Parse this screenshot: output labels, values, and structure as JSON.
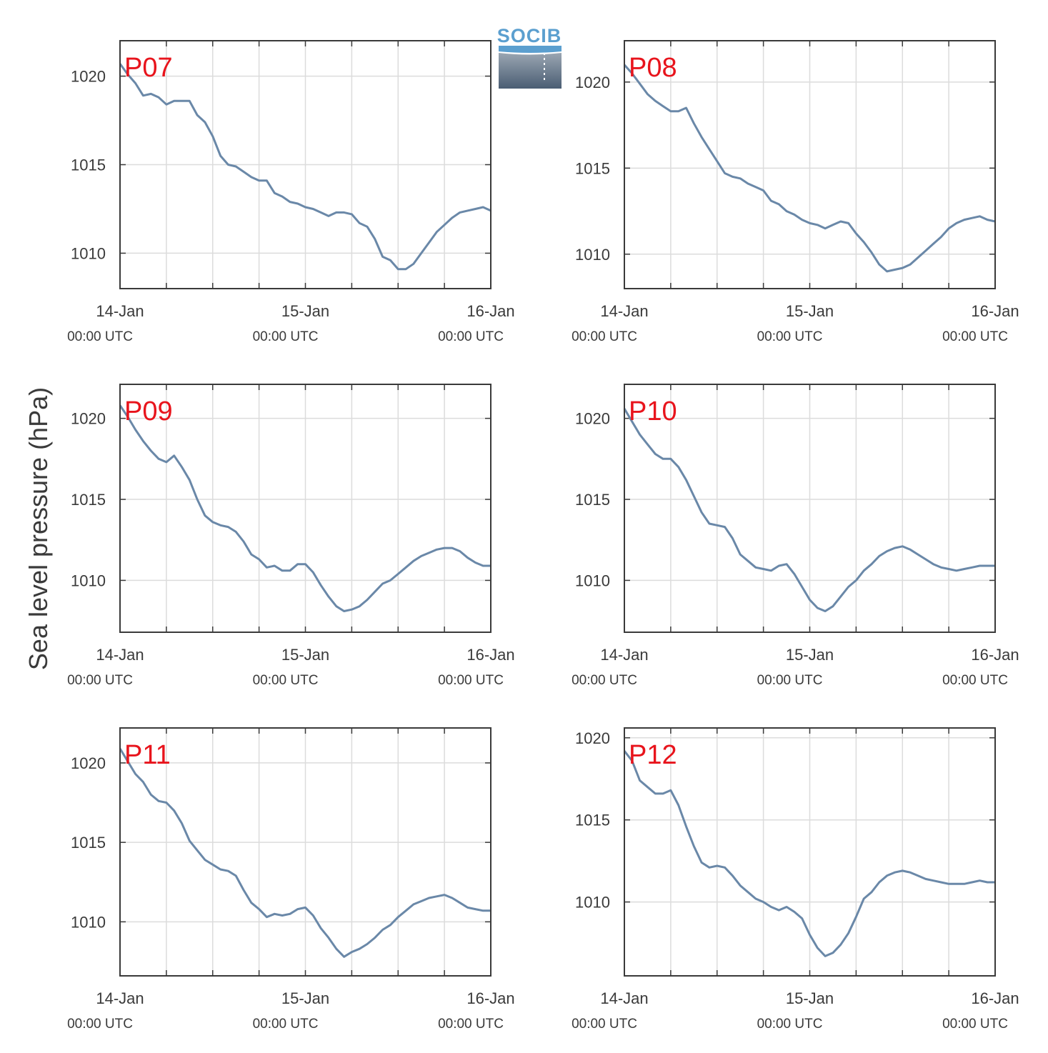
{
  "figure": {
    "ylabel": "Sea level pressure (hPa)",
    "logo_text": "SOCIB",
    "colors": {
      "line": "#6a88a8",
      "grid": "#dcdcdc",
      "axis": "#3a3a3a",
      "label": "#e8141c",
      "logo": "#5b9fcf"
    }
  },
  "chart_data": [
    {
      "type": "line",
      "title": "P07",
      "xlabel": "",
      "ylabel": "",
      "x_ticks": [
        {
          "main": "14-Jan",
          "sub": "00:00 UTC"
        },
        {
          "main": "15-Jan",
          "sub": "00:00 UTC"
        },
        {
          "main": "16-Jan",
          "sub": "00:00 UTC"
        }
      ],
      "xlim_hours": [
        0,
        48
      ],
      "ylim": [
        1008,
        1022
      ],
      "yticks": [
        1010,
        1015,
        1020
      ],
      "grid": true,
      "series": [
        {
          "name": "",
          "x_hours": [
            0,
            1,
            2,
            3,
            4,
            5,
            6,
            7,
            8,
            9,
            10,
            11,
            12,
            13,
            14,
            15,
            16,
            17,
            18,
            19,
            20,
            21,
            22,
            23,
            24,
            25,
            26,
            27,
            28,
            29,
            30,
            31,
            32,
            33,
            34,
            35,
            36,
            37,
            38,
            39,
            40,
            41,
            42,
            43,
            44,
            45,
            46,
            47,
            48
          ],
          "values": [
            1020.7,
            1020.1,
            1019.6,
            1018.9,
            1019.0,
            1018.8,
            1018.4,
            1018.6,
            1018.6,
            1018.6,
            1017.8,
            1017.4,
            1016.6,
            1015.5,
            1015.0,
            1014.9,
            1014.6,
            1014.3,
            1014.1,
            1014.1,
            1013.4,
            1013.2,
            1012.9,
            1012.8,
            1012.6,
            1012.5,
            1012.3,
            1012.1,
            1012.3,
            1012.3,
            1012.2,
            1011.7,
            1011.5,
            1010.8,
            1009.8,
            1009.6,
            1009.1,
            1009.1,
            1009.4,
            1010.0,
            1010.6,
            1011.2,
            1011.6,
            1012.0,
            1012.3,
            1012.4,
            1012.5,
            1012.6,
            1012.4
          ]
        }
      ]
    },
    {
      "type": "line",
      "title": "P08",
      "xlabel": "",
      "ylabel": "",
      "x_ticks": [
        {
          "main": "14-Jan",
          "sub": "00:00 UTC"
        },
        {
          "main": "15-Jan",
          "sub": "00:00 UTC"
        },
        {
          "main": "16-Jan",
          "sub": "00:00 UTC"
        }
      ],
      "xlim_hours": [
        0,
        48
      ],
      "ylim": [
        1008,
        1022.4
      ],
      "yticks": [
        1010,
        1015,
        1020
      ],
      "grid": true,
      "series": [
        {
          "name": "",
          "x_hours": [
            0,
            1,
            2,
            3,
            4,
            5,
            6,
            7,
            8,
            9,
            10,
            11,
            12,
            13,
            14,
            15,
            16,
            17,
            18,
            19,
            20,
            21,
            22,
            23,
            24,
            25,
            26,
            27,
            28,
            29,
            30,
            31,
            32,
            33,
            34,
            35,
            36,
            37,
            38,
            39,
            40,
            41,
            42,
            43,
            44,
            45,
            46,
            47,
            48
          ],
          "values": [
            1021.0,
            1020.5,
            1019.9,
            1019.3,
            1018.9,
            1018.6,
            1018.3,
            1018.3,
            1018.5,
            1017.6,
            1016.8,
            1016.1,
            1015.4,
            1014.7,
            1014.5,
            1014.4,
            1014.1,
            1013.9,
            1013.7,
            1013.1,
            1012.9,
            1012.5,
            1012.3,
            1012.0,
            1011.8,
            1011.7,
            1011.5,
            1011.7,
            1011.9,
            1011.8,
            1011.2,
            1010.7,
            1010.1,
            1009.4,
            1009.0,
            1009.1,
            1009.2,
            1009.4,
            1009.8,
            1010.2,
            1010.6,
            1011.0,
            1011.5,
            1011.8,
            1012.0,
            1012.1,
            1012.2,
            1012.0,
            1011.9
          ]
        }
      ]
    },
    {
      "type": "line",
      "title": "P09",
      "xlabel": "",
      "ylabel": "",
      "x_ticks": [
        {
          "main": "14-Jan",
          "sub": "00:00 UTC"
        },
        {
          "main": "15-Jan",
          "sub": "00:00 UTC"
        },
        {
          "main": "16-Jan",
          "sub": "00:00 UTC"
        }
      ],
      "xlim_hours": [
        0,
        48
      ],
      "ylim": [
        1006.8,
        1022.1
      ],
      "yticks": [
        1010,
        1015,
        1020
      ],
      "grid": true,
      "series": [
        {
          "name": "",
          "x_hours": [
            0,
            1,
            2,
            3,
            4,
            5,
            6,
            7,
            8,
            9,
            10,
            11,
            12,
            13,
            14,
            15,
            16,
            17,
            18,
            19,
            20,
            21,
            22,
            23,
            24,
            25,
            26,
            27,
            28,
            29,
            30,
            31,
            32,
            33,
            34,
            35,
            36,
            37,
            38,
            39,
            40,
            41,
            42,
            43,
            44,
            45,
            46,
            47,
            48
          ],
          "values": [
            1020.8,
            1020.1,
            1019.3,
            1018.6,
            1018.0,
            1017.5,
            1017.3,
            1017.7,
            1017.0,
            1016.2,
            1015.0,
            1014.0,
            1013.6,
            1013.4,
            1013.3,
            1013.0,
            1012.4,
            1011.6,
            1011.3,
            1010.8,
            1010.9,
            1010.6,
            1010.6,
            1011.0,
            1011.0,
            1010.5,
            1009.7,
            1009.0,
            1008.4,
            1008.1,
            1008.2,
            1008.4,
            1008.8,
            1009.3,
            1009.8,
            1010.0,
            1010.4,
            1010.8,
            1011.2,
            1011.5,
            1011.7,
            1011.9,
            1012.0,
            1012.0,
            1011.8,
            1011.4,
            1011.1,
            1010.9,
            1010.9
          ]
        }
      ]
    },
    {
      "type": "line",
      "title": "P10",
      "xlabel": "",
      "ylabel": "",
      "x_ticks": [
        {
          "main": "14-Jan",
          "sub": "00:00 UTC"
        },
        {
          "main": "15-Jan",
          "sub": "00:00 UTC"
        },
        {
          "main": "16-Jan",
          "sub": "00:00 UTC"
        }
      ],
      "xlim_hours": [
        0,
        48
      ],
      "ylim": [
        1006.8,
        1022.1
      ],
      "yticks": [
        1010,
        1015,
        1020
      ],
      "grid": true,
      "series": [
        {
          "name": "",
          "x_hours": [
            0,
            1,
            2,
            3,
            4,
            5,
            6,
            7,
            8,
            9,
            10,
            11,
            12,
            13,
            14,
            15,
            16,
            17,
            18,
            19,
            20,
            21,
            22,
            23,
            24,
            25,
            26,
            27,
            28,
            29,
            30,
            31,
            32,
            33,
            34,
            35,
            36,
            37,
            38,
            39,
            40,
            41,
            42,
            43,
            44,
            45,
            46,
            47,
            48
          ],
          "values": [
            1020.6,
            1019.8,
            1019.0,
            1018.4,
            1017.8,
            1017.5,
            1017.5,
            1017.0,
            1016.2,
            1015.2,
            1014.2,
            1013.5,
            1013.4,
            1013.3,
            1012.6,
            1011.6,
            1011.2,
            1010.8,
            1010.7,
            1010.6,
            1010.9,
            1011.0,
            1010.4,
            1009.6,
            1008.8,
            1008.3,
            1008.1,
            1008.4,
            1009.0,
            1009.6,
            1010.0,
            1010.6,
            1011.0,
            1011.5,
            1011.8,
            1012.0,
            1012.1,
            1011.9,
            1011.6,
            1011.3,
            1011.0,
            1010.8,
            1010.7,
            1010.6,
            1010.7,
            1010.8,
            1010.9,
            1010.9,
            1010.9
          ]
        }
      ]
    },
    {
      "type": "line",
      "title": "P11",
      "xlabel": "",
      "ylabel": "",
      "x_ticks": [
        {
          "main": "14-Jan",
          "sub": "00:00 UTC"
        },
        {
          "main": "15-Jan",
          "sub": "00:00 UTC"
        },
        {
          "main": "16-Jan",
          "sub": "00:00 UTC"
        }
      ],
      "xlim_hours": [
        0,
        48
      ],
      "ylim": [
        1006.6,
        1022.2
      ],
      "yticks": [
        1010,
        1015,
        1020
      ],
      "grid": true,
      "series": [
        {
          "name": "",
          "x_hours": [
            0,
            1,
            2,
            3,
            4,
            5,
            6,
            7,
            8,
            9,
            10,
            11,
            12,
            13,
            14,
            15,
            16,
            17,
            18,
            19,
            20,
            21,
            22,
            23,
            24,
            25,
            26,
            27,
            28,
            29,
            30,
            31,
            32,
            33,
            34,
            35,
            36,
            37,
            38,
            39,
            40,
            41,
            42,
            43,
            44,
            45,
            46,
            47,
            48
          ],
          "values": [
            1020.9,
            1020.1,
            1019.3,
            1018.8,
            1018.0,
            1017.6,
            1017.5,
            1017.0,
            1016.2,
            1015.1,
            1014.5,
            1013.9,
            1013.6,
            1013.3,
            1013.2,
            1012.9,
            1012.0,
            1011.2,
            1010.8,
            1010.3,
            1010.5,
            1010.4,
            1010.5,
            1010.8,
            1010.9,
            1010.4,
            1009.6,
            1009.0,
            1008.3,
            1007.8,
            1008.1,
            1008.3,
            1008.6,
            1009.0,
            1009.5,
            1009.8,
            1010.3,
            1010.7,
            1011.1,
            1011.3,
            1011.5,
            1011.6,
            1011.7,
            1011.5,
            1011.2,
            1010.9,
            1010.8,
            1010.7,
            1010.7
          ]
        }
      ]
    },
    {
      "type": "line",
      "title": "P12",
      "xlabel": "",
      "ylabel": "",
      "x_ticks": [
        {
          "main": "14-Jan",
          "sub": "00:00 UTC"
        },
        {
          "main": "15-Jan",
          "sub": "00:00 UTC"
        },
        {
          "main": "16-Jan",
          "sub": "00:00 UTC"
        }
      ],
      "xlim_hours": [
        0,
        48
      ],
      "ylim": [
        1005.5,
        1020.6
      ],
      "yticks": [
        1010,
        1015,
        1020
      ],
      "grid": true,
      "series": [
        {
          "name": "",
          "x_hours": [
            0,
            1,
            2,
            3,
            4,
            5,
            6,
            7,
            8,
            9,
            10,
            11,
            12,
            13,
            14,
            15,
            16,
            17,
            18,
            19,
            20,
            21,
            22,
            23,
            24,
            25,
            26,
            27,
            28,
            29,
            30,
            31,
            32,
            33,
            34,
            35,
            36,
            37,
            38,
            39,
            40,
            41,
            42,
            43,
            44,
            45,
            46,
            47,
            48
          ],
          "values": [
            1019.2,
            1018.6,
            1017.4,
            1017.0,
            1016.6,
            1016.6,
            1016.8,
            1015.9,
            1014.6,
            1013.4,
            1012.4,
            1012.1,
            1012.2,
            1012.1,
            1011.6,
            1011.0,
            1010.6,
            1010.2,
            1010.0,
            1009.7,
            1009.5,
            1009.7,
            1009.4,
            1009.0,
            1008.0,
            1007.2,
            1006.7,
            1006.9,
            1007.4,
            1008.1,
            1009.1,
            1010.2,
            1010.6,
            1011.2,
            1011.6,
            1011.8,
            1011.9,
            1011.8,
            1011.6,
            1011.4,
            1011.3,
            1011.2,
            1011.1,
            1011.1,
            1011.1,
            1011.2,
            1011.3,
            1011.2,
            1011.2
          ]
        }
      ]
    }
  ]
}
